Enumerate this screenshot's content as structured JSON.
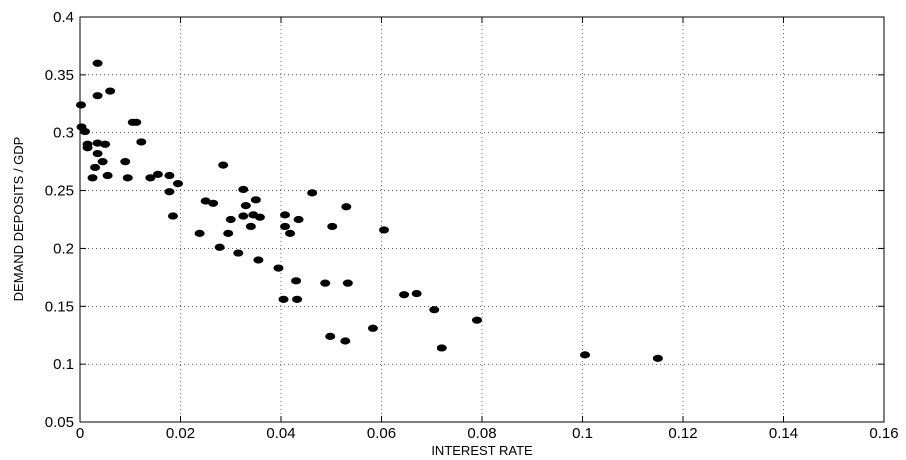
{
  "chart_data": {
    "type": "scatter",
    "title": "",
    "xlabel": "INTEREST RATE",
    "ylabel": "DEMAND DEPOSITS / GDP",
    "xlim": [
      0,
      0.16
    ],
    "ylim": [
      0.05,
      0.4
    ],
    "xticks": [
      0,
      0.02,
      0.04,
      0.06,
      0.08,
      0.1,
      0.12,
      0.14,
      0.16
    ],
    "xtick_labels": [
      "0",
      "0.02",
      "0.04",
      "0.06",
      "0.08",
      "0.1",
      "0.12",
      "0.14",
      "0.16"
    ],
    "yticks": [
      0.05,
      0.1,
      0.15,
      0.2,
      0.25,
      0.3,
      0.35,
      0.4
    ],
    "ytick_labels": [
      "0.05",
      "0.1",
      "0.15",
      "0.2",
      "0.25",
      "0.3",
      "0.35",
      "0.4"
    ],
    "grid": "dotted",
    "marker_color": "#000000",
    "points": [
      [
        0.0002,
        0.324
      ],
      [
        0.0003,
        0.305
      ],
      [
        0.001,
        0.301
      ],
      [
        0.0015,
        0.29
      ],
      [
        0.0015,
        0.287
      ],
      [
        0.0035,
        0.36
      ],
      [
        0.0035,
        0.332
      ],
      [
        0.006,
        0.336
      ],
      [
        0.0035,
        0.291
      ],
      [
        0.005,
        0.29
      ],
      [
        0.0035,
        0.282
      ],
      [
        0.0045,
        0.275
      ],
      [
        0.003,
        0.27
      ],
      [
        0.0025,
        0.261
      ],
      [
        0.0055,
        0.263
      ],
      [
        0.0105,
        0.309
      ],
      [
        0.0112,
        0.309
      ],
      [
        0.0122,
        0.292
      ],
      [
        0.009,
        0.275
      ],
      [
        0.0095,
        0.261
      ],
      [
        0.014,
        0.261
      ],
      [
        0.0155,
        0.264
      ],
      [
        0.0178,
        0.263
      ],
      [
        0.0195,
        0.256
      ],
      [
        0.0178,
        0.249
      ],
      [
        0.0185,
        0.228
      ],
      [
        0.0285,
        0.272
      ],
      [
        0.025,
        0.241
      ],
      [
        0.0265,
        0.239
      ],
      [
        0.0238,
        0.213
      ],
      [
        0.0325,
        0.251
      ],
      [
        0.033,
        0.237
      ],
      [
        0.035,
        0.242
      ],
      [
        0.03,
        0.225
      ],
      [
        0.0325,
        0.228
      ],
      [
        0.0345,
        0.229
      ],
      [
        0.0358,
        0.227
      ],
      [
        0.034,
        0.219
      ],
      [
        0.0295,
        0.213
      ],
      [
        0.0278,
        0.201
      ],
      [
        0.0315,
        0.196
      ],
      [
        0.0355,
        0.19
      ],
      [
        0.0462,
        0.248
      ],
      [
        0.053,
        0.236
      ],
      [
        0.0408,
        0.229
      ],
      [
        0.0435,
        0.225
      ],
      [
        0.0408,
        0.219
      ],
      [
        0.0418,
        0.213
      ],
      [
        0.0502,
        0.219
      ],
      [
        0.0605,
        0.216
      ],
      [
        0.0395,
        0.183
      ],
      [
        0.043,
        0.172
      ],
      [
        0.0488,
        0.17
      ],
      [
        0.0533,
        0.17
      ],
      [
        0.0405,
        0.156
      ],
      [
        0.0432,
        0.156
      ],
      [
        0.0498,
        0.124
      ],
      [
        0.0528,
        0.12
      ],
      [
        0.0583,
        0.131
      ],
      [
        0.0645,
        0.16
      ],
      [
        0.067,
        0.161
      ],
      [
        0.0705,
        0.147
      ],
      [
        0.072,
        0.114
      ],
      [
        0.079,
        0.138
      ],
      [
        0.1005,
        0.108
      ],
      [
        0.115,
        0.105
      ]
    ]
  }
}
